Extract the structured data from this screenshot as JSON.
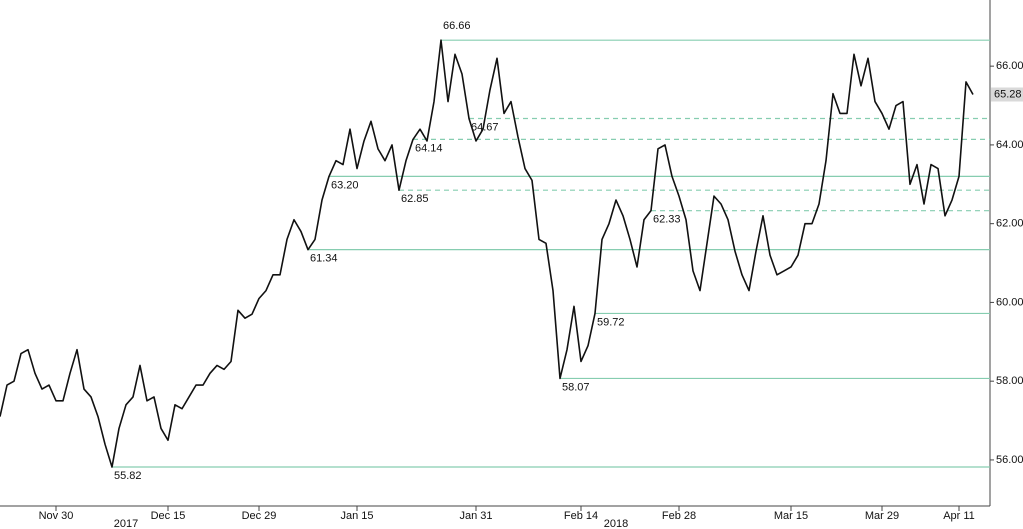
{
  "chart_data": {
    "type": "line",
    "categories": [
      null,
      null,
      null,
      null,
      null,
      null,
      null,
      null,
      "Nov 30",
      null,
      null,
      null,
      null,
      null,
      null,
      null,
      null,
      null,
      null,
      null,
      null,
      null,
      null,
      null,
      "Dec 15",
      null,
      null,
      null,
      null,
      null,
      null,
      null,
      null,
      null,
      null,
      null,
      null,
      "Dec 29",
      null,
      null,
      null,
      null,
      null,
      null,
      null,
      null,
      null,
      null,
      null,
      null,
      null,
      "Jan 15",
      null,
      null,
      null,
      null,
      null,
      null,
      null,
      null,
      null,
      null,
      null,
      null,
      null,
      null,
      null,
      null,
      "Jan 31",
      null,
      null,
      null,
      null,
      null,
      null,
      null,
      null,
      null,
      null,
      null,
      null,
      null,
      null,
      "Feb 14",
      null,
      null,
      null,
      null,
      null,
      null,
      null,
      null,
      null,
      null,
      null,
      null,
      null,
      "Feb 28",
      null,
      null,
      null,
      null,
      null,
      null,
      null,
      null,
      null,
      null,
      null,
      null,
      null,
      null,
      null,
      "Mar 15",
      null,
      null,
      null,
      null,
      null,
      null,
      null,
      null,
      null,
      null,
      null,
      null,
      "Mar 29",
      null,
      null,
      null,
      null,
      null,
      null,
      null,
      null,
      null,
      null,
      "Apr 11",
      null,
      null
    ],
    "x_group_labels": [
      null,
      null,
      null,
      null,
      null,
      null,
      null,
      null,
      null,
      null,
      null,
      null,
      null,
      null,
      null,
      null,
      null,
      null,
      "2017",
      null,
      null,
      null,
      null,
      null,
      null,
      null,
      null,
      null,
      null,
      null,
      null,
      null,
      null,
      null,
      null,
      null,
      null,
      null,
      null,
      null,
      null,
      null,
      null,
      null,
      null,
      null,
      null,
      null,
      null,
      null,
      null,
      null,
      null,
      null,
      null,
      null,
      null,
      null,
      null,
      null,
      null,
      null,
      null,
      null,
      null,
      null,
      null,
      null,
      null,
      null,
      null,
      null,
      null,
      null,
      null,
      null,
      null,
      null,
      null,
      null,
      null,
      null,
      null,
      null,
      null,
      null,
      null,
      null,
      "2018",
      null,
      null,
      null,
      null,
      null,
      null,
      null,
      null,
      null,
      null,
      null,
      null,
      null,
      null,
      null,
      null,
      null,
      null,
      null,
      null,
      null,
      null,
      null,
      null,
      null,
      null,
      null,
      null,
      null,
      null,
      null,
      null,
      null,
      null,
      null,
      null,
      null,
      null,
      null,
      null,
      null,
      null,
      null,
      null,
      null,
      null,
      null,
      null,
      null,
      null,
      null,
      null,
      null,
      null,
      null,
      null
    ],
    "series": [
      {
        "color": "#111111",
        "values": [
          57.1,
          57.9,
          58.0,
          58.7,
          58.8,
          58.2,
          57.8,
          57.9,
          57.5,
          57.5,
          58.2,
          58.8,
          57.8,
          57.6,
          57.1,
          56.4,
          55.82,
          56.8,
          57.4,
          57.6,
          58.4,
          57.5,
          57.6,
          56.8,
          56.5,
          57.4,
          57.3,
          57.6,
          57.9,
          57.9,
          58.2,
          58.4,
          58.3,
          58.5,
          59.8,
          59.6,
          59.7,
          60.1,
          60.3,
          60.7,
          60.7,
          61.6,
          62.1,
          61.8,
          61.34,
          61.6,
          62.6,
          63.2,
          63.6,
          63.5,
          64.4,
          63.4,
          64.1,
          64.6,
          63.9,
          63.6,
          64.0,
          62.85,
          63.6,
          64.14,
          64.4,
          64.1,
          65.1,
          66.66,
          65.1,
          66.3,
          65.8,
          64.67,
          64.1,
          64.4,
          65.4,
          66.2,
          64.8,
          65.1,
          64.2,
          63.4,
          63.1,
          61.6,
          61.5,
          60.3,
          58.07,
          58.8,
          59.9,
          58.5,
          58.9,
          59.72,
          61.6,
          62.0,
          62.6,
          62.2,
          61.6,
          60.9,
          62.1,
          62.33,
          63.9,
          64.0,
          63.2,
          62.7,
          62.1,
          60.8,
          60.3,
          61.5,
          62.7,
          62.5,
          62.1,
          61.3,
          60.7,
          60.3,
          61.3,
          62.2,
          61.2,
          60.7,
          60.8,
          60.9,
          61.2,
          62.0,
          62.0,
          62.5,
          63.6,
          65.3,
          64.8,
          64.8,
          66.3,
          65.5,
          66.2,
          65.1,
          64.8,
          64.4,
          65.0,
          65.1,
          63.0,
          63.5,
          62.5,
          63.5,
          63.4,
          62.2,
          62.6,
          63.2,
          65.6,
          65.28
        ]
      }
    ],
    "levels": [
      {
        "value": 66.66,
        "label": "66.66",
        "style": "solid"
      },
      {
        "value": 64.67,
        "label": "64.67",
        "style": "dashed"
      },
      {
        "value": 64.14,
        "label": "64.14",
        "style": "dashed"
      },
      {
        "value": 63.2,
        "label": "63.20",
        "style": "solid"
      },
      {
        "value": 62.85,
        "label": "62.85",
        "style": "dashed"
      },
      {
        "value": 62.33,
        "label": "62.33",
        "style": "dashed"
      },
      {
        "value": 61.34,
        "label": "61.34",
        "style": "solid"
      },
      {
        "value": 59.72,
        "label": "59.72",
        "style": "solid"
      },
      {
        "value": 58.07,
        "label": "58.07",
        "style": "solid"
      },
      {
        "value": 55.82,
        "label": "55.82",
        "style": "solid"
      }
    ],
    "level_color": "#86cdb0",
    "ylim": [
      54.83,
      67.68
    ],
    "yticks": [
      {
        "value": 56,
        "label": "56.00"
      },
      {
        "value": 58,
        "label": "58.00"
      },
      {
        "value": 60,
        "label": "60.00"
      },
      {
        "value": 62,
        "label": "62.00"
      },
      {
        "value": 64,
        "label": "64.00"
      },
      {
        "value": 66,
        "label": "66.00"
      }
    ]
  }
}
